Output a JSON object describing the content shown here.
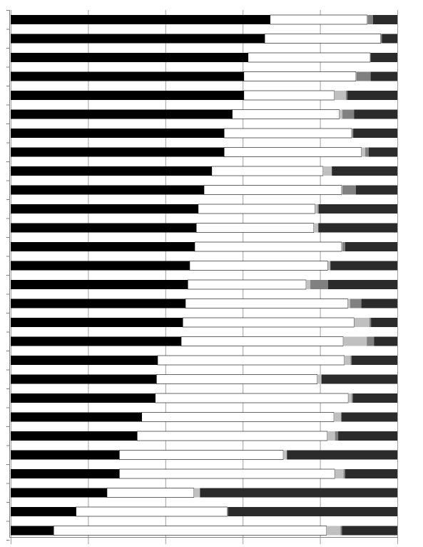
{
  "chart_data": {
    "type": "bar",
    "orientation": "horizontal",
    "stacked": true,
    "normalized_percent": true,
    "title": "",
    "xlabel": "",
    "ylabel": "",
    "xlim": [
      0,
      100
    ],
    "x_gridlines": [
      0,
      20,
      40,
      60,
      80,
      100
    ],
    "grid": true,
    "legend": "none",
    "series_colors": [
      "#000000",
      "#ffffff",
      "#c0c0c0",
      "#808080",
      "#2b2b2b"
    ],
    "rows": [
      [
        67.1,
        25.1,
        0.1,
        1.4,
        6.3
      ],
      [
        65.7,
        30.0,
        0.0,
        0.3,
        4.0
      ],
      [
        61.4,
        31.6,
        0.0,
        0.1,
        6.9
      ],
      [
        60.3,
        29.0,
        0.1,
        3.7,
        6.9
      ],
      [
        60.3,
        23.4,
        3.0,
        0.4,
        12.9
      ],
      [
        57.3,
        27.7,
        0.8,
        3.0,
        11.2
      ],
      [
        55.2,
        33.0,
        0.1,
        0.3,
        11.4
      ],
      [
        55.2,
        35.5,
        1.0,
        0.9,
        7.4
      ],
      [
        52.0,
        28.8,
        2.2,
        0.1,
        16.9
      ],
      [
        50.0,
        35.6,
        0.2,
        3.5,
        10.7
      ],
      [
        48.5,
        30.2,
        0.7,
        0.3,
        20.3
      ],
      [
        48.0,
        30.4,
        1.1,
        0.1,
        20.4
      ],
      [
        47.6,
        38.0,
        0.2,
        0.7,
        13.5
      ],
      [
        46.3,
        35.7,
        0.6,
        0.1,
        17.3
      ],
      [
        45.8,
        30.6,
        1.1,
        4.6,
        17.9
      ],
      [
        45.2,
        42.0,
        0.6,
        2.9,
        9.3
      ],
      [
        44.5,
        44.3,
        4.0,
        0.4,
        6.8
      ],
      [
        44.1,
        41.9,
        6.1,
        1.9,
        6.0
      ],
      [
        38.0,
        48.3,
        1.6,
        0.3,
        11.8
      ],
      [
        37.7,
        41.6,
        1.0,
        0.1,
        19.6
      ],
      [
        37.4,
        49.9,
        0.9,
        0.3,
        11.5
      ],
      [
        33.9,
        49.7,
        1.8,
        0.2,
        14.4
      ],
      [
        32.7,
        49.2,
        2.0,
        0.8,
        15.3
      ],
      [
        28.1,
        42.4,
        0.9,
        0.1,
        28.5
      ],
      [
        28.1,
        55.7,
        2.3,
        0.4,
        13.5
      ],
      [
        24.9,
        22.5,
        1.5,
        0.1,
        51.0
      ],
      [
        16.9,
        39.1,
        0.1,
        0.1,
        43.8
      ],
      [
        11.1,
        70.6,
        3.6,
        0.4,
        14.3
      ]
    ]
  }
}
